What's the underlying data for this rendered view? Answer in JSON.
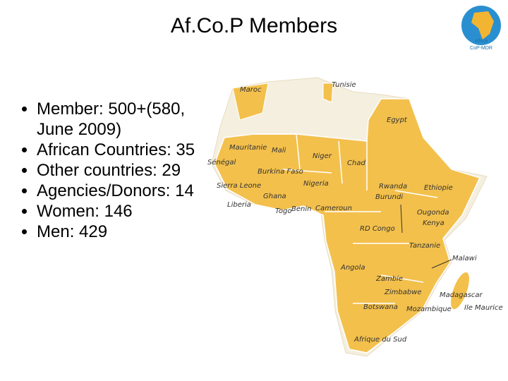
{
  "header": {
    "title": "Af.Co.P Members"
  },
  "logo": {
    "lines": [
      "Africa",
      "CoP-MDR"
    ]
  },
  "bullets": [
    "Member: 500+(580, June 2009)",
    "African Countries: 35",
    "Other countries: 29",
    "Agencies/Donors: 14",
    "Women: 146",
    "Men: 429"
  ],
  "map": {
    "labels": [
      "Maroc",
      "Tunisie",
      "Egypt",
      "Mauritanie",
      "Mali",
      "Niger",
      "Chad",
      "Sénégal",
      "Burkina Faso",
      "Sierra Leone",
      "Liberia",
      "Ghana",
      "Togo",
      "Benin",
      "Nigeria",
      "Cameroun",
      "Rwanda",
      "Burundi",
      "Ethiopie",
      "Ougonda",
      "Kenya",
      "RD Congo",
      "Tanzanie",
      "Malawi",
      "Angola",
      "Zambie",
      "Zimbabwe",
      "Madagascar",
      "Ile Maurice",
      "Botswana",
      "Mozambique",
      "Afrique du Sud"
    ]
  }
}
